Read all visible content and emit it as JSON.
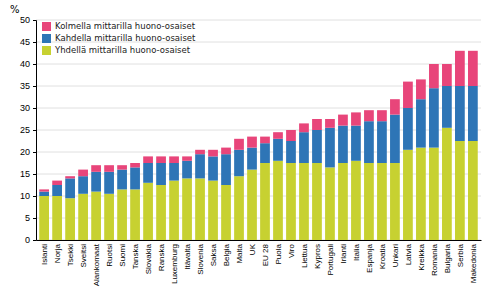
{
  "chart_data": {
    "type": "bar",
    "stacked": true,
    "ylabel": "%",
    "categories": [
      "Islanti",
      "Norja",
      "Tsekki",
      "Sveitsi",
      "Alankomaat",
      "Ruotsi",
      "Suomi",
      "Tanska",
      "Slovakia",
      "Ranska",
      "Luxemburg",
      "Itävalta",
      "Slovenia",
      "Saksa",
      "Belgia",
      "Malta",
      "UK",
      "EU 28",
      "Puola",
      "Viro",
      "Liettua",
      "Kypros",
      "Portugali",
      "Irlanti",
      "Italia",
      "Espanja",
      "Kroatia",
      "Unkari",
      "Latvia",
      "Kreikka",
      "Romania",
      "Bulgaria",
      "Serbia",
      "Makedonia"
    ],
    "series": [
      {
        "name": "Yhdellä mittarilla huono-osaiset",
        "color": "#c7d131",
        "values": [
          10.0,
          10.0,
          9.5,
          10.5,
          11.0,
          10.5,
          11.5,
          11.5,
          13.0,
          12.5,
          13.5,
          14.0,
          14.0,
          13.5,
          12.5,
          14.5,
          16.0,
          17.5,
          18.0,
          17.5,
          17.5,
          17.5,
          16.5,
          17.5,
          18.0,
          17.5,
          17.5,
          17.5,
          20.5,
          21.0,
          21.0,
          25.5,
          22.5,
          22.5
        ]
      },
      {
        "name": "Kahdella mittarilla huono-osaiset",
        "color": "#2e75b6",
        "values": [
          1.0,
          2.5,
          4.5,
          4.0,
          4.5,
          5.0,
          4.5,
          5.0,
          4.5,
          5.0,
          4.0,
          4.0,
          5.5,
          5.5,
          7.0,
          6.0,
          5.0,
          4.5,
          5.0,
          5.0,
          7.0,
          7.5,
          9.0,
          8.5,
          8.0,
          9.5,
          9.5,
          11.0,
          9.5,
          11.0,
          13.5,
          9.5,
          12.5,
          12.5
        ]
      },
      {
        "name": "Kolmella mittarilla huono-osaiset",
        "color": "#e8457a",
        "values": [
          0.5,
          1.0,
          0.5,
          1.5,
          1.5,
          1.5,
          1.0,
          1.0,
          1.5,
          1.5,
          1.5,
          1.0,
          1.0,
          1.5,
          1.5,
          2.5,
          2.5,
          1.5,
          1.5,
          2.5,
          2.0,
          2.5,
          2.0,
          2.5,
          3.0,
          2.5,
          2.5,
          3.5,
          6.0,
          4.5,
          5.5,
          5.0,
          8.0,
          8.0
        ]
      }
    ],
    "ylim": [
      0,
      50
    ],
    "yticks": [
      0,
      5,
      10,
      15,
      20,
      25,
      30,
      35,
      40,
      45,
      50
    ],
    "grid": true,
    "legend": "upper left"
  }
}
